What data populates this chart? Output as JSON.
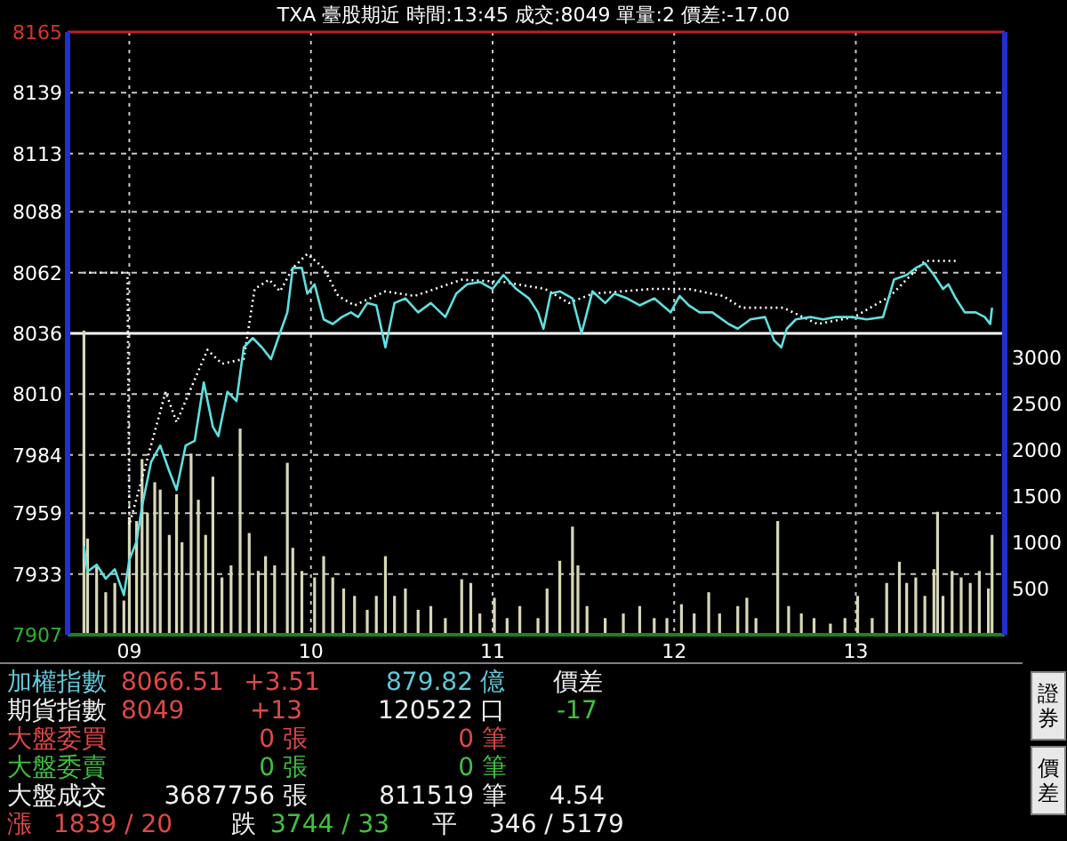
{
  "chart_data": [
    {
      "type": "line",
      "title": "TXA  臺股期近 時間:13:45 成交:8049 單量:2  價差:-17.00",
      "xlim": [
        8.66,
        13.82
      ],
      "xticks": [
        {
          "value": 9,
          "label": "09"
        },
        {
          "value": 10,
          "label": "10"
        },
        {
          "value": 11,
          "label": "11"
        },
        {
          "value": 12,
          "label": "12"
        },
        {
          "value": 13,
          "label": "13"
        }
      ],
      "ylim": [
        7907,
        8165
      ],
      "yticks": [
        8165,
        8139,
        8113,
        8088,
        8062,
        8036,
        8010,
        7984,
        7959,
        7933,
        7907
      ],
      "y2lim": [
        0,
        6520
      ],
      "y2ticks": [
        500,
        1000,
        1500,
        2000,
        2500,
        3000
      ],
      "grid": true,
      "ref_lines": [
        {
          "axis": "y",
          "value": 8036,
          "color": "#ffffff"
        }
      ],
      "series": [
        {
          "type": "bar",
          "axis": "y2",
          "color": "#d8d8b8",
          "x": [
            8.75,
            8.77,
            8.82,
            8.87,
            8.92,
            8.97,
            9.0,
            9.04,
            9.07,
            9.1,
            9.14,
            9.17,
            9.22,
            9.26,
            9.29,
            9.34,
            9.38,
            9.42,
            9.46,
            9.51,
            9.56,
            9.61,
            9.66,
            9.71,
            9.75,
            9.8,
            9.87,
            9.9,
            9.95,
            10.02,
            10.07,
            10.12,
            10.18,
            10.24,
            10.31,
            10.36,
            10.41,
            10.46,
            10.52,
            10.59,
            10.66,
            10.74,
            10.83,
            10.88,
            10.93,
            11.01,
            11.08,
            11.15,
            11.25,
            11.3,
            11.37,
            11.44,
            11.47,
            11.52,
            11.62,
            11.72,
            11.81,
            11.89,
            11.96,
            12.04,
            12.11,
            12.19,
            12.25,
            12.35,
            12.4,
            12.45,
            12.57,
            12.63,
            12.7,
            12.77,
            12.86,
            12.94,
            13.01,
            13.09,
            13.17,
            13.24,
            13.28,
            13.33,
            13.38,
            13.43,
            13.45,
            13.48,
            13.53,
            13.58,
            13.63,
            13.68,
            13.73,
            13.75
          ],
          "values": [
            3290,
            1040,
            750,
            460,
            560,
            370,
            1270,
            1230,
            1900,
            1320,
            1650,
            1570,
            1080,
            1520,
            1000,
            1960,
            1460,
            1080,
            1710,
            620,
            750,
            2230,
            1100,
            690,
            850,
            750,
            1860,
            940,
            690,
            620,
            850,
            620,
            500,
            420,
            270,
            420,
            850,
            420,
            500,
            270,
            310,
            180,
            600,
            560,
            230,
            400,
            180,
            310,
            180,
            500,
            800,
            1170,
            750,
            310,
            180,
            230,
            310,
            180,
            180,
            330,
            230,
            460,
            230,
            310,
            400,
            180,
            1230,
            310,
            230,
            180,
            120,
            180,
            420,
            180,
            560,
            790,
            560,
            620,
            420,
            710,
            1330,
            420,
            690,
            620,
            560,
            690,
            500,
            1080
          ]
        },
        {
          "type": "line",
          "color": "#ffffff",
          "line_style": "dotted",
          "x": [
            8.75,
            8.99,
            9.0,
            9.2,
            9.26,
            9.43,
            9.51,
            9.63,
            9.69,
            9.77,
            9.83,
            9.9,
            9.98,
            10.07,
            10.15,
            10.24,
            10.41,
            10.57,
            10.83,
            11.06,
            11.29,
            11.42,
            11.55,
            11.88,
            12.08,
            12.27,
            12.37,
            12.6,
            12.79,
            12.99,
            13.19,
            13.38,
            13.55
          ],
          "values": [
            8062,
            8062,
            7954,
            8011,
            7998,
            8029,
            8023,
            8025,
            8055,
            8059,
            8054,
            8064,
            8070,
            8064,
            8052,
            8048,
            8054,
            8052,
            8059,
            8058,
            8055,
            8049,
            8053,
            8055,
            8055,
            8052,
            8047,
            8047,
            8040,
            8043,
            8052,
            8067,
            8067
          ]
        },
        {
          "type": "line",
          "color": "#5fe0e0",
          "x": [
            8.75,
            8.77,
            8.82,
            8.87,
            8.92,
            8.97,
            9.0,
            9.04,
            9.07,
            9.12,
            9.17,
            9.22,
            9.26,
            9.31,
            9.36,
            9.41,
            9.46,
            9.49,
            9.54,
            9.59,
            9.63,
            9.68,
            9.73,
            9.78,
            9.82,
            9.87,
            9.9,
            9.95,
            9.98,
            10.02,
            10.07,
            10.12,
            10.17,
            10.22,
            10.26,
            10.31,
            10.36,
            10.41,
            10.46,
            10.52,
            10.59,
            10.66,
            10.74,
            10.8,
            10.86,
            10.93,
            11.0,
            11.06,
            11.13,
            11.2,
            11.25,
            11.28,
            11.32,
            11.37,
            11.44,
            11.49,
            11.55,
            11.62,
            11.67,
            11.74,
            11.81,
            11.89,
            11.98,
            12.03,
            12.08,
            12.14,
            12.21,
            12.3,
            12.35,
            12.42,
            12.5,
            12.55,
            12.59,
            12.62,
            12.67,
            12.75,
            12.82,
            12.89,
            12.98,
            13.06,
            13.15,
            13.21,
            13.28,
            13.33,
            13.38,
            13.43,
            13.48,
            13.51,
            13.55,
            13.6,
            13.66,
            13.71,
            13.74,
            13.75
          ],
          "values": [
            7945,
            7934,
            7937,
            7931,
            7935,
            7924,
            7939,
            7947,
            7962,
            7981,
            7988,
            7977,
            7969,
            7988,
            7990,
            8015,
            7996,
            7992,
            8011,
            8007,
            8030,
            8034,
            8030,
            8025,
            8034,
            8045,
            8064,
            8064,
            8053,
            8057,
            8042,
            8040,
            8043,
            8045,
            8043,
            8049,
            8048,
            8030,
            8049,
            8051,
            8045,
            8049,
            8043,
            8053,
            8057,
            8058,
            8055,
            8061,
            8055,
            8051,
            8045,
            8038,
            8053,
            8054,
            8051,
            8036,
            8054,
            8049,
            8053,
            8051,
            8048,
            8051,
            8045,
            8052,
            8048,
            8045,
            8045,
            8040,
            8038,
            8042,
            8043,
            8033,
            8030,
            8038,
            8042,
            8043,
            8042,
            8043,
            8043,
            8042,
            8043,
            8059,
            8061,
            8064,
            8066,
            8061,
            8055,
            8057,
            8051,
            8045,
            8045,
            8043,
            8040,
            8047
          ]
        }
      ]
    },
    {
      "type": "other",
      "annotations": [
        "加權指數",
        "8066.51",
        "+3.51",
        "879.82",
        "億",
        "價差",
        "期貨指數",
        "8049",
        "+13",
        "120522",
        "口",
        "-17",
        "大盤委買",
        "0 張",
        "0 筆",
        "大盤委賣",
        "0 張",
        "0 筆",
        "大盤成交",
        "3687756 張",
        "811519 筆",
        "4.54",
        "漲",
        "1839 / 20",
        "跌",
        "3744 / 33",
        "平",
        "346 / 5179",
        "證券",
        "價差"
      ]
    }
  ]
}
